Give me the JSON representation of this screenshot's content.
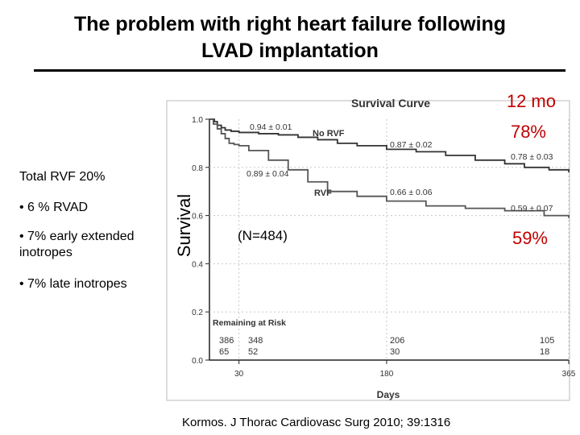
{
  "slide": {
    "title_line1": "The problem with right heart failure following",
    "title_line2": "LVAD implantation",
    "total_rvf": "Total RVF 20%",
    "bullets": [
      "• 6 % RVAD",
      "• 7% early extended inotropes",
      "• 7% late inotropes"
    ],
    "citation": "Kormos. J Thorac Cardiovasc Surg 2010; 39:1316"
  },
  "chart_data": {
    "type": "line",
    "title": "Survival Curve",
    "xlabel": "Days",
    "ylabel": "Survival",
    "xlim": [
      0,
      365
    ],
    "ylim": [
      0,
      1.0
    ],
    "x_ticks": [
      30,
      180,
      365
    ],
    "y_ticks": [
      "0.0",
      "0.2",
      "0.4",
      "0.6",
      "0.8",
      "1.0"
    ],
    "series": [
      {
        "name": "No RVF",
        "color": "#333333",
        "points": [
          [
            0,
            1.0
          ],
          [
            5,
            0.99
          ],
          [
            8,
            0.975
          ],
          [
            12,
            0.965
          ],
          [
            16,
            0.955
          ],
          [
            22,
            0.95
          ],
          [
            30,
            0.945
          ],
          [
            50,
            0.94
          ],
          [
            70,
            0.935
          ],
          [
            90,
            0.925
          ],
          [
            110,
            0.915
          ],
          [
            130,
            0.9
          ],
          [
            150,
            0.89
          ],
          [
            180,
            0.875
          ],
          [
            210,
            0.865
          ],
          [
            240,
            0.85
          ],
          [
            270,
            0.83
          ],
          [
            300,
            0.815
          ],
          [
            320,
            0.8
          ],
          [
            345,
            0.79
          ],
          [
            365,
            0.78
          ]
        ]
      },
      {
        "name": "RVF",
        "color": "#555555",
        "points": [
          [
            0,
            1.0
          ],
          [
            4,
            0.98
          ],
          [
            8,
            0.96
          ],
          [
            12,
            0.94
          ],
          [
            16,
            0.92
          ],
          [
            20,
            0.9
          ],
          [
            25,
            0.895
          ],
          [
            30,
            0.89
          ],
          [
            40,
            0.87
          ],
          [
            60,
            0.83
          ],
          [
            80,
            0.79
          ],
          [
            100,
            0.74
          ],
          [
            120,
            0.7
          ],
          [
            150,
            0.68
          ],
          [
            180,
            0.66
          ],
          [
            220,
            0.64
          ],
          [
            260,
            0.63
          ],
          [
            300,
            0.62
          ],
          [
            340,
            0.6
          ],
          [
            365,
            0.59
          ]
        ]
      }
    ],
    "annotations": [
      "0.94 ± 0.01",
      "0.87 ± 0.02",
      "0.78 ± 0.03",
      "0.89 ± 0.04",
      "0.66 ± 0.06",
      "0.59 ± 0.07"
    ],
    "remaining_at_risk": {
      "label": "Remaining at Risk",
      "no_rvf": [
        "386",
        "348",
        "206",
        "105"
      ],
      "rvf": [
        "65",
        "52",
        "30",
        "18"
      ]
    },
    "overlay": {
      "months": "12 mo",
      "no_rvf_pct": "78%",
      "rvf_pct": "59%",
      "n_label": "(N=484)"
    }
  }
}
